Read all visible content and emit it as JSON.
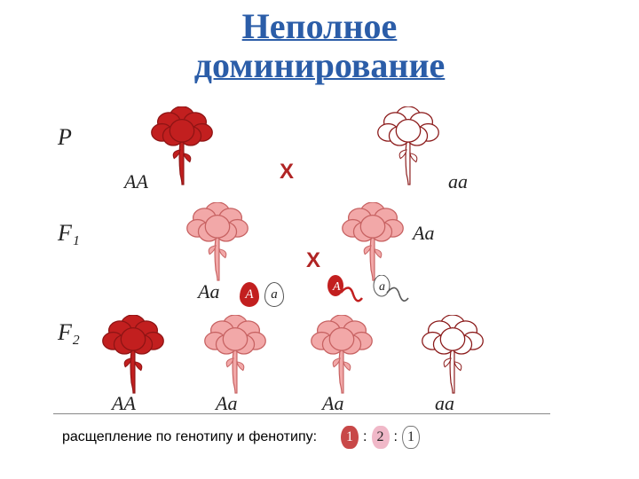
{
  "title_line1": "Неполное",
  "title_line2": "доминирование",
  "title_color": "#2b5da8",
  "labels": {
    "P": "P",
    "F1": "F₁",
    "F2": "F₂",
    "cross": "X"
  },
  "genotypes": {
    "AA": "AA",
    "Aa": "Aa",
    "aa": "aa",
    "A": "A",
    "a": "a"
  },
  "colors": {
    "red_fill": "#c21f1f",
    "red_stroke": "#8e1414",
    "pink_fill": "#f2a8a8",
    "pink_stroke": "#c76262",
    "white_fill": "#ffffff",
    "white_stroke": "#8b1a1a",
    "cross_color": "#b02424",
    "text": "#222222",
    "gamete_red_fill": "#c21f1f",
    "gamete_red_text": "#ffffff",
    "gamete_white_fill": "#ffffff",
    "gamete_white_border": "#555555",
    "ratio_badge1": "#c84848",
    "ratio_badge2": "#f0b8c8",
    "ratio_badge3": "#ffffff",
    "ratio_border": "#777777"
  },
  "bottom_text": "расщепление по генотипу и фенотипу:",
  "ratio": [
    "1",
    ":",
    "2",
    ":",
    "1"
  ]
}
